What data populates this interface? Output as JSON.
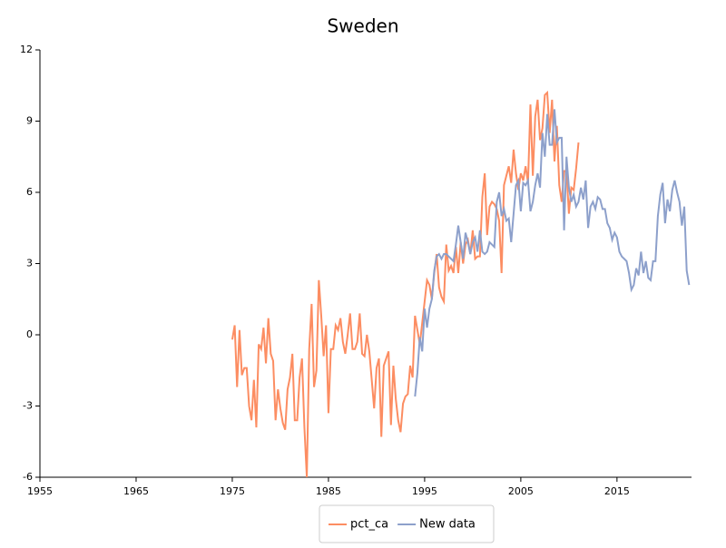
{
  "chart_data": {
    "type": "line",
    "title": "Sweden",
    "xlim": [
      1955,
      2022.75
    ],
    "xticks": [
      1955,
      1965,
      1975,
      1985,
      1995,
      2005,
      2015
    ],
    "ylim": [
      -6,
      12
    ],
    "yticks": [
      -6,
      -3,
      0,
      3,
      6,
      9,
      12
    ],
    "legend": "bottom",
    "series": [
      {
        "name": "pct_ca",
        "color": "#fc8d62",
        "x": [
          1975,
          1975.25,
          1975.5,
          1975.75,
          1976,
          1976.25,
          1976.5,
          1976.75,
          1977,
          1977.25,
          1977.5,
          1977.75,
          1978,
          1978.25,
          1978.5,
          1978.75,
          1979,
          1979.25,
          1979.5,
          1979.75,
          1980,
          1980.25,
          1980.5,
          1980.75,
          1981,
          1981.25,
          1981.5,
          1981.75,
          1982,
          1982.25,
          1982.5,
          1982.75,
          1983,
          1983.25,
          1983.5,
          1983.75,
          1984,
          1984.25,
          1984.5,
          1984.75,
          1985,
          1985.25,
          1985.5,
          1985.75,
          1986,
          1986.25,
          1986.5,
          1986.75,
          1987,
          1987.25,
          1987.5,
          1987.75,
          1988,
          1988.25,
          1988.5,
          1988.75,
          1989,
          1989.25,
          1989.5,
          1989.75,
          1990,
          1990.25,
          1990.5,
          1990.75,
          1991,
          1991.25,
          1991.5,
          1991.75,
          1992,
          1992.25,
          1992.5,
          1992.75,
          1993,
          1993.25,
          1993.5,
          1993.75,
          1994,
          1994.25,
          1994.5,
          1994.75,
          1995,
          1995.25,
          1995.5,
          1995.75,
          1996,
          1996.25,
          1996.5,
          1996.75,
          1997,
          1997.25,
          1997.5,
          1997.75,
          1998,
          1998.25,
          1998.5,
          1998.75,
          1999,
          1999.25,
          1999.5,
          1999.75,
          2000,
          2000.25,
          2000.5,
          2000.75,
          2001,
          2001.25,
          2001.5,
          2001.75,
          2002,
          2002.25,
          2002.5,
          2002.75,
          2003,
          2003.25,
          2003.5,
          2003.75,
          2004,
          2004.25,
          2004.5,
          2004.75,
          2005,
          2005.25,
          2005.5,
          2005.75,
          2006,
          2006.25,
          2006.5,
          2006.75,
          2007,
          2007.25,
          2007.5,
          2007.75,
          2008,
          2008.25,
          2008.5,
          2008.75,
          2009,
          2009.25,
          2009.5,
          2009.75,
          2010,
          2010.25,
          2010.5,
          2010.75,
          2011
        ],
        "values": [
          -0.2,
          0.4,
          -2.2,
          0.2,
          -1.7,
          -1.4,
          -1.4,
          -3.0,
          -3.6,
          -1.9,
          -3.9,
          -0.4,
          -0.6,
          0.3,
          -1.2,
          0.7,
          -0.8,
          -1.1,
          -3.6,
          -2.3,
          -3.1,
          -3.7,
          -4.0,
          -2.3,
          -1.8,
          -0.8,
          -3.6,
          -3.6,
          -1.8,
          -1.0,
          -3.9,
          -6.0,
          -0.6,
          1.3,
          -2.2,
          -1.5,
          2.3,
          0.8,
          -0.9,
          0.4,
          -3.3,
          -0.6,
          -0.6,
          0.4,
          0.2,
          0.7,
          -0.3,
          -0.8,
          0.0,
          0.9,
          -0.6,
          -0.6,
          -0.3,
          0.9,
          -0.8,
          -0.9,
          0.0,
          -0.7,
          -1.9,
          -3.1,
          -1.4,
          -1.0,
          -4.3,
          -1.3,
          -1.0,
          -0.7,
          -3.8,
          -1.3,
          -2.7,
          -3.6,
          -4.1,
          -2.9,
          -2.6,
          -2.5,
          -1.3,
          -1.8,
          0.8,
          0.2,
          -0.4,
          0.5,
          1.4,
          2.3,
          2.1,
          1.5,
          2.6,
          3.4,
          2.0,
          1.6,
          1.4,
          3.8,
          2.7,
          2.9,
          2.6,
          3.7,
          2.6,
          3.9,
          3.0,
          3.8,
          4.0,
          3.4,
          4.4,
          3.2,
          3.3,
          3.3,
          5.8,
          6.8,
          4.2,
          5.4,
          5.6,
          5.5,
          5.3,
          4.8,
          2.6,
          6.3,
          6.7,
          7.1,
          6.4,
          7.8,
          6.8,
          6.1,
          6.8,
          6.5,
          7.1,
          6.4,
          9.7,
          6.7,
          9.2,
          9.9,
          8.2,
          8.7,
          10.1,
          10.2,
          8.5,
          9.9,
          7.3,
          8.8,
          6.3,
          5.6,
          6.9,
          6.9,
          5.1,
          6.2,
          6.1,
          7.0,
          8.1
        ]
      },
      {
        "name": "New data",
        "color": "#8da0cb",
        "x": [
          1994,
          1994.25,
          1994.5,
          1994.75,
          1995,
          1995.25,
          1995.5,
          1995.75,
          1996,
          1996.25,
          1996.5,
          1996.75,
          1997,
          1997.25,
          1997.5,
          1997.75,
          1998,
          1998.25,
          1998.5,
          1998.75,
          1999,
          1999.25,
          1999.5,
          1999.75,
          2000,
          2000.25,
          2000.5,
          2000.75,
          2001,
          2001.25,
          2001.5,
          2001.75,
          2002,
          2002.25,
          2002.5,
          2002.75,
          2003,
          2003.25,
          2003.5,
          2003.75,
          2004,
          2004.25,
          2004.5,
          2004.75,
          2005,
          2005.25,
          2005.5,
          2005.75,
          2006,
          2006.25,
          2006.5,
          2006.75,
          2007,
          2007.25,
          2007.5,
          2007.75,
          2008,
          2008.25,
          2008.5,
          2008.75,
          2009,
          2009.25,
          2009.5,
          2009.75,
          2010,
          2010.25,
          2010.5,
          2010.75,
          2011,
          2011.25,
          2011.5,
          2011.75,
          2012,
          2012.25,
          2012.5,
          2012.75,
          2013,
          2013.25,
          2013.5,
          2013.75,
          2014,
          2014.25,
          2014.5,
          2014.75,
          2015,
          2015.25,
          2015.5,
          2015.75,
          2016,
          2016.25,
          2016.5,
          2016.75,
          2017,
          2017.25,
          2017.5,
          2017.75,
          2018,
          2018.25,
          2018.5,
          2018.75,
          2019,
          2019.25,
          2019.5,
          2019.75,
          2020,
          2020.25,
          2020.5,
          2020.75,
          2021,
          2021.25,
          2021.5,
          2021.75,
          2022,
          2022.25,
          2022.5
        ],
        "values": [
          -2.6,
          -1.6,
          -0.1,
          -0.7,
          1.1,
          0.3,
          1.1,
          1.5,
          2.7,
          3.3,
          3.4,
          3.2,
          3.4,
          3.4,
          3.3,
          3.2,
          3.1,
          3.8,
          4.6,
          3.9,
          3.2,
          4.3,
          3.9,
          3.4,
          3.9,
          4.1,
          3.5,
          4.4,
          3.5,
          3.4,
          3.5,
          3.9,
          3.8,
          3.7,
          5.6,
          6.0,
          5.0,
          5.3,
          4.8,
          4.9,
          3.9,
          5.1,
          6.3,
          6.5,
          5.2,
          6.4,
          6.3,
          6.5,
          5.2,
          5.6,
          6.3,
          6.8,
          6.2,
          8.5,
          7.5,
          9.3,
          8.0,
          8.0,
          9.5,
          8.1,
          8.3,
          8.3,
          4.4,
          7.5,
          6.2,
          5.6,
          5.9,
          5.4,
          5.6,
          6.2,
          5.7,
          6.5,
          4.5,
          5.4,
          5.6,
          5.3,
          5.8,
          5.7,
          5.3,
          5.3,
          4.7,
          4.5,
          4.0,
          4.3,
          4.1,
          3.5,
          3.3,
          3.2,
          3.1,
          2.6,
          1.9,
          2.1,
          2.8,
          2.5,
          3.5,
          2.6,
          3.1,
          2.4,
          2.3,
          3.1,
          3.1,
          5.0,
          5.9,
          6.4,
          4.7,
          5.7,
          5.2,
          6.1,
          6.5,
          6.0,
          5.6,
          4.6,
          5.4,
          2.7,
          2.1
        ]
      }
    ]
  }
}
